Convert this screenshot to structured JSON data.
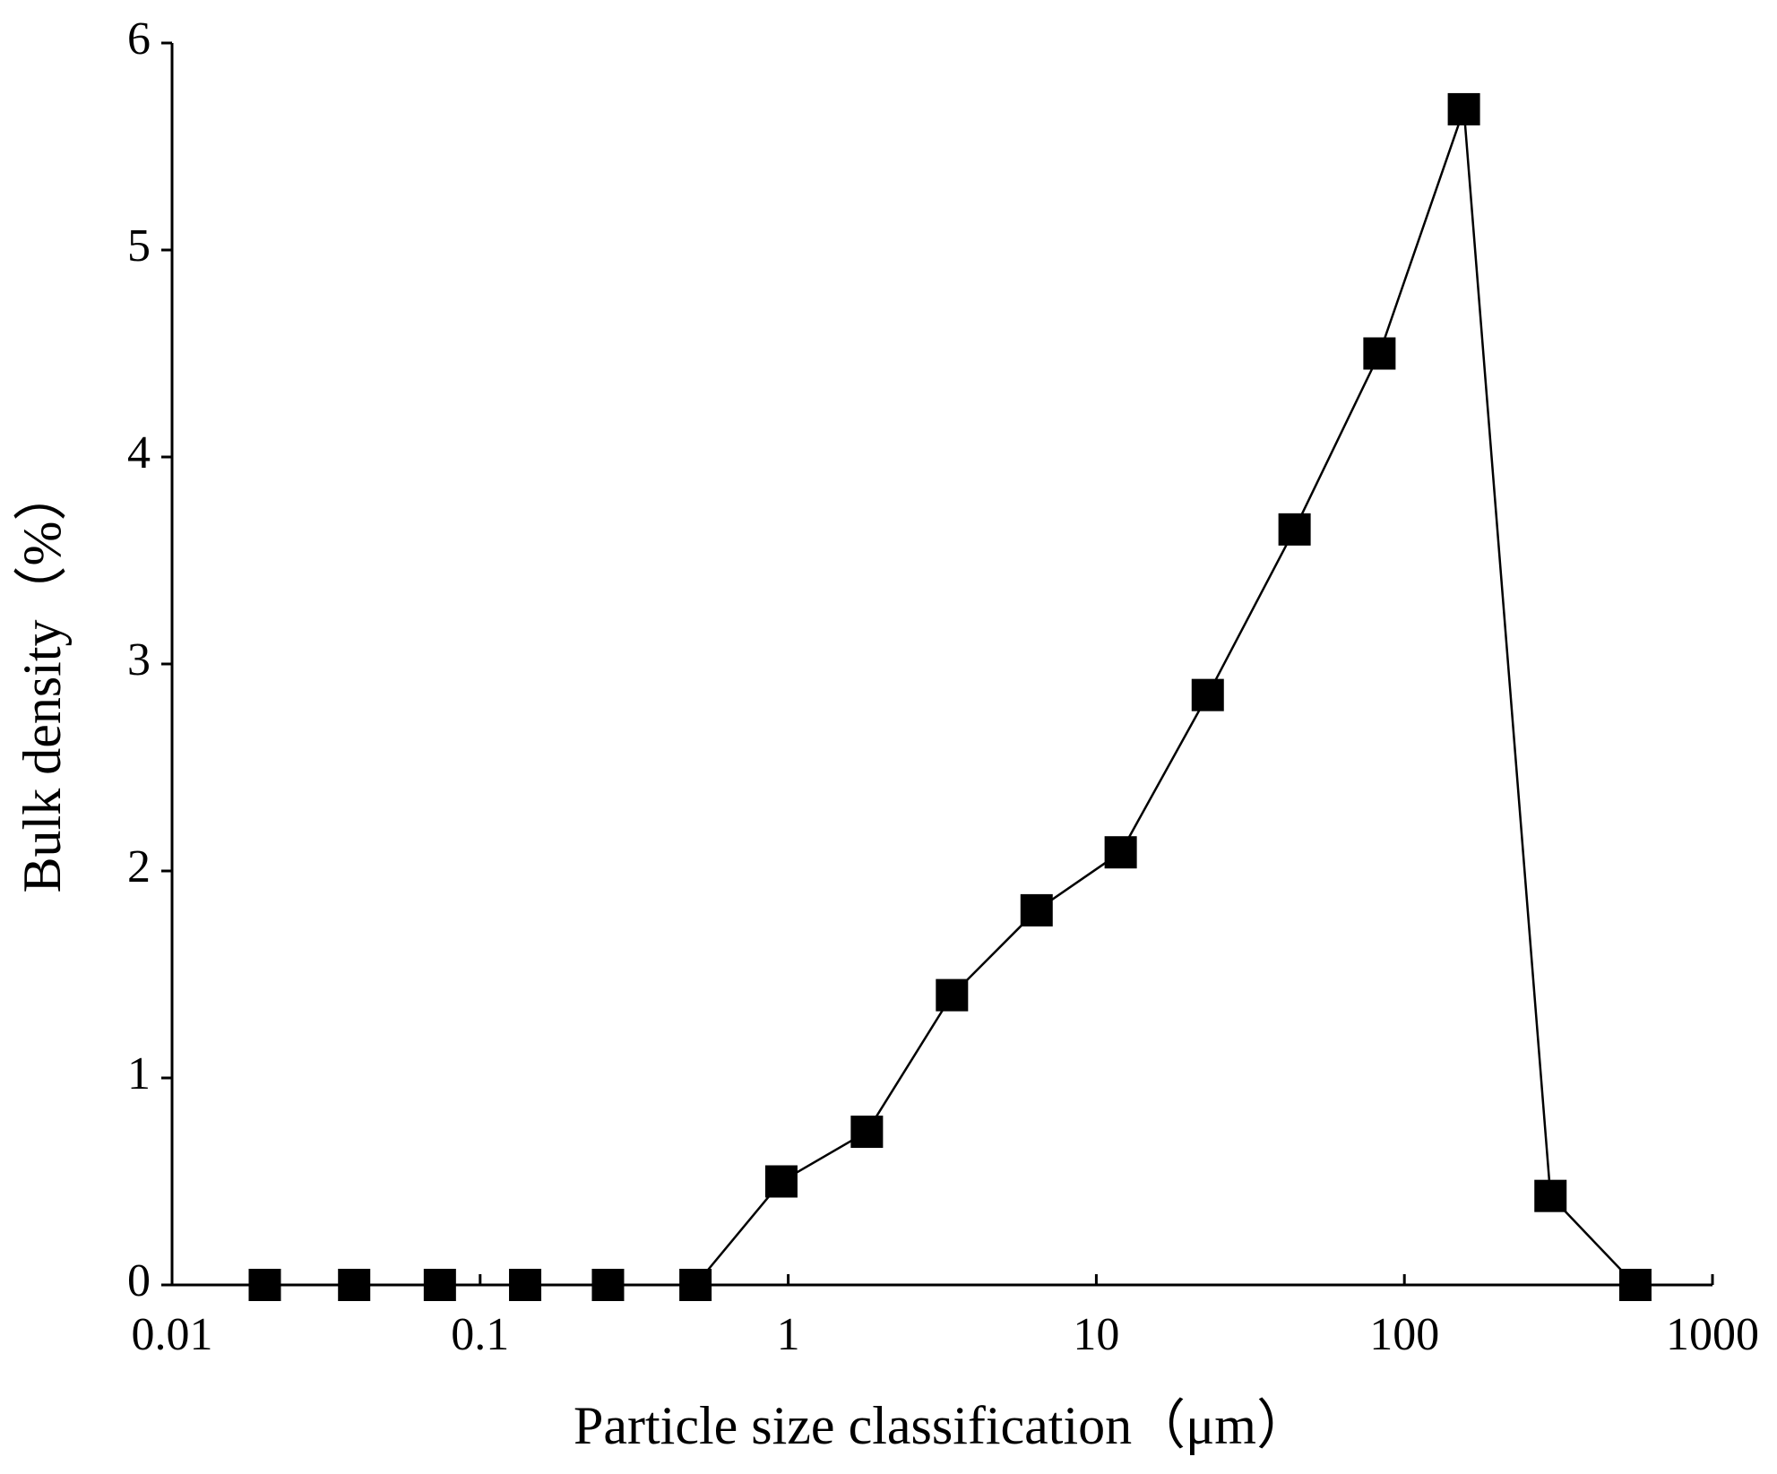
{
  "chart_data": {
    "type": "line",
    "x_label": "Particle size classification（μm）",
    "y_label": "Bulk density（%）",
    "x": [
      0.02,
      0.039,
      0.074,
      0.14,
      0.26,
      0.5,
      0.95,
      1.8,
      3.4,
      6.4,
      12,
      23,
      44,
      83,
      156,
      298,
      562
    ],
    "series": [
      {
        "name": "Bulk density",
        "color": "#000000",
        "values": [
          0,
          0,
          0,
          0,
          0,
          0,
          0.5,
          0.74,
          1.4,
          1.81,
          2.09,
          2.85,
          3.65,
          4.5,
          5.68,
          0.43,
          0
        ]
      }
    ],
    "xlim": [
      0.01,
      1000
    ],
    "xticks": [
      0.01,
      0.1,
      1,
      10,
      100,
      1000
    ],
    "xscale": "log",
    "ylim": [
      0,
      6
    ],
    "yticks": [
      0,
      1,
      2,
      3,
      4,
      5,
      6
    ],
    "grid": false
  }
}
